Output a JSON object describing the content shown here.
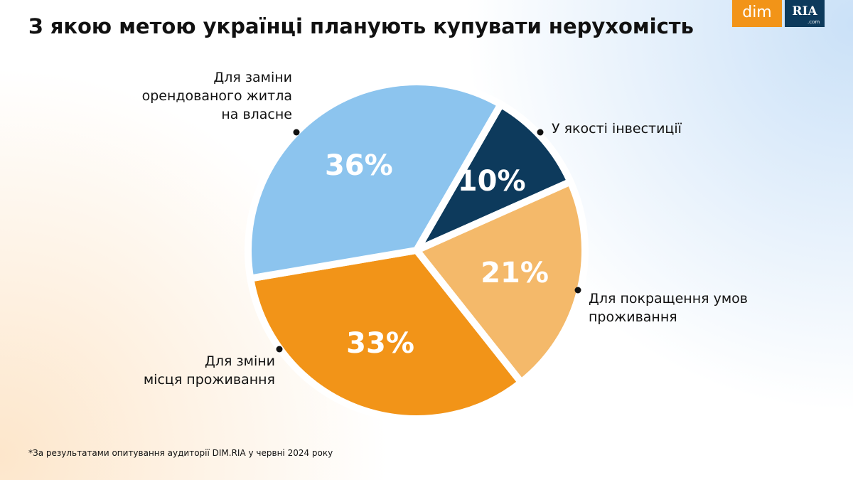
{
  "chart_data": {
    "type": "pie",
    "title": "З якою метою українці планують купувати нерухомість",
    "categories": [
      "У якості інвестиції",
      "Для покращення умов\nпроживання",
      "Для зміни\nмісця проживання",
      "Для заміни\nорендованого житла\nна власне"
    ],
    "values": [
      10,
      21,
      33,
      36
    ],
    "value_labels": [
      "10%",
      "21%",
      "33%",
      "36%"
    ],
    "colors": [
      "#0d3a5c",
      "#f4b96a",
      "#f29418",
      "#8cc4ee"
    ],
    "footnote": "*За результатами опитування аудиторії DIM.RIA у червні 2024 року"
  },
  "logo": {
    "left": "dim",
    "right": "RIA",
    "sub": ".com"
  }
}
